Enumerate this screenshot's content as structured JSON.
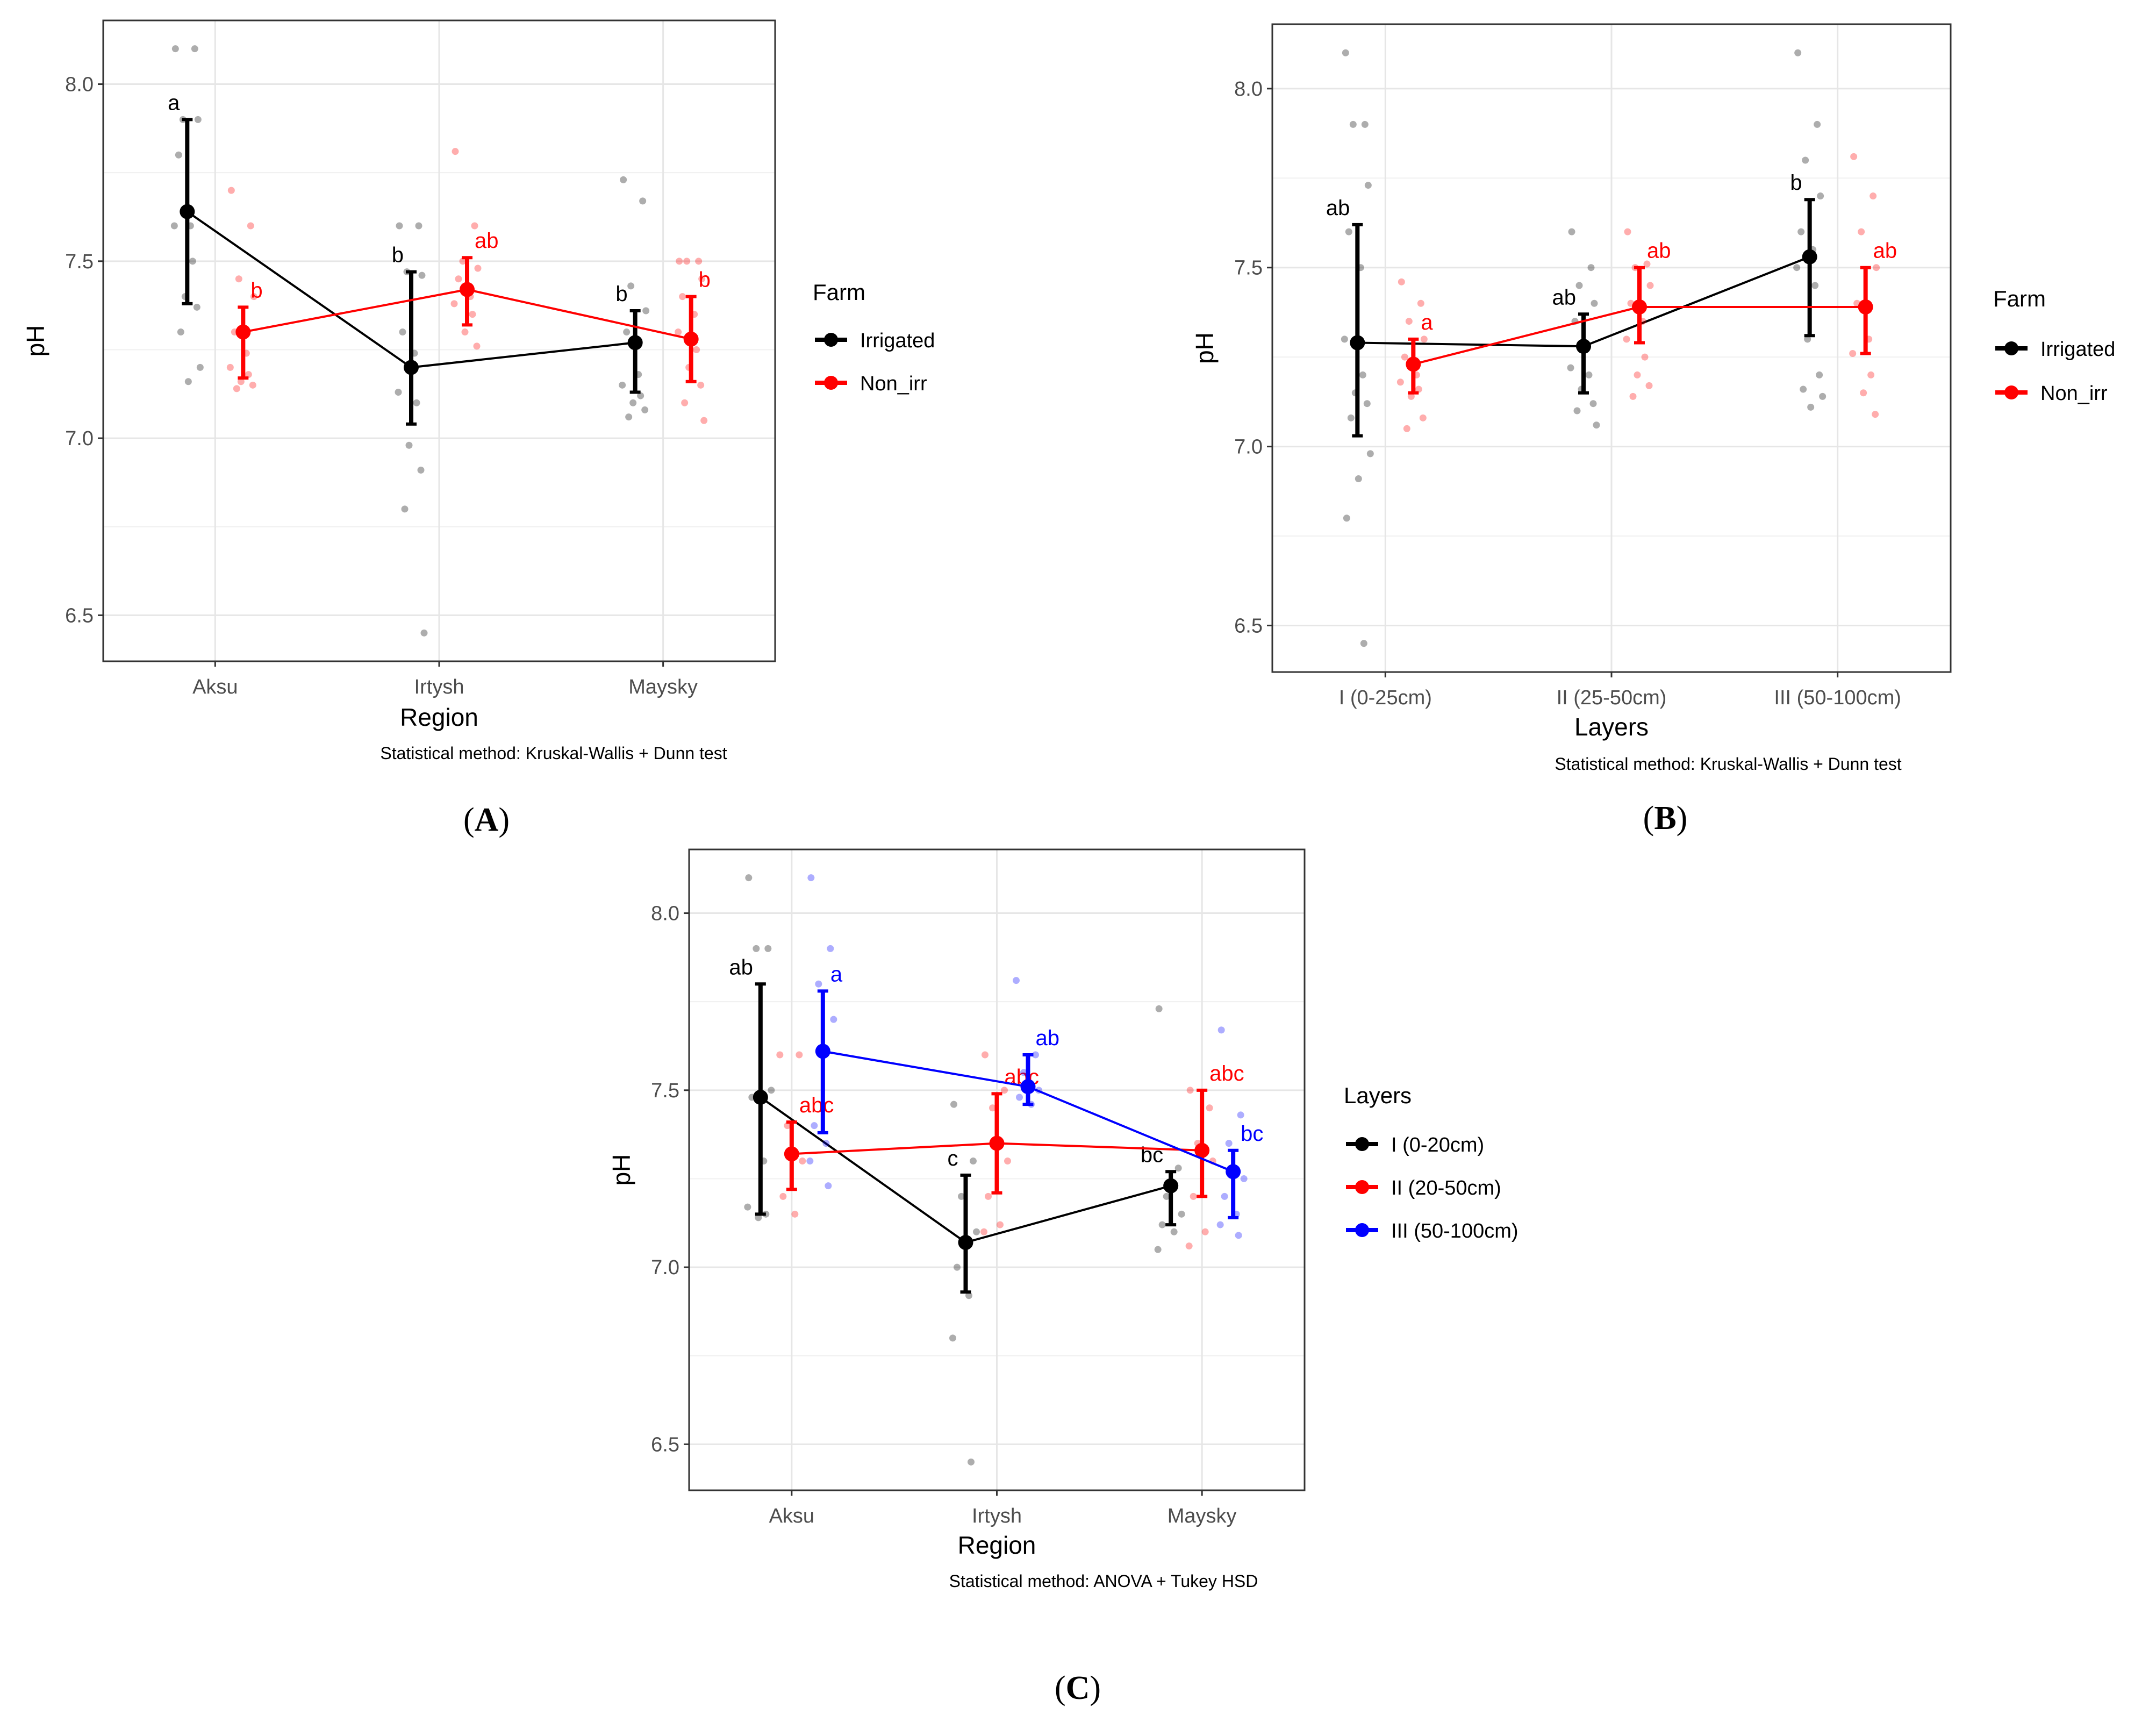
{
  "chart_data": [
    {
      "id": "A",
      "type": "line",
      "panel_label": "A",
      "xlabel": "Region",
      "ylabel": "pH",
      "caption": "Statistical method: Kruskal-Wallis + Dunn test",
      "categories": [
        "Aksu",
        "Irtysh",
        "Maysky"
      ],
      "ylim": [
        6.37,
        8.18
      ],
      "yticks": [
        6.5,
        7.0,
        7.5,
        8.0
      ],
      "ytick_labels": [
        "6.5",
        "7.0",
        "7.5",
        "8.0"
      ],
      "grid": true,
      "legend": {
        "title": "Farm",
        "placement": "right"
      },
      "series": [
        {
          "name": "Irrigated",
          "color": "#000000",
          "means": [
            7.64,
            7.2,
            7.27
          ],
          "lower": [
            7.38,
            7.04,
            7.13
          ],
          "upper": [
            7.9,
            7.47,
            7.36
          ],
          "letters": [
            "a",
            "b",
            "b"
          ],
          "points": [
            [
              8.1,
              8.1,
              7.9,
              7.9,
              7.8,
              7.6,
              7.6,
              7.5,
              7.4,
              7.37,
              7.3,
              7.2,
              7.16
            ],
            [
              7.6,
              7.6,
              7.47,
              7.46,
              7.3,
              7.24,
              7.13,
              7.1,
              6.98,
              6.91,
              6.8,
              6.45
            ],
            [
              7.73,
              7.67,
              7.43,
              7.36,
              7.3,
              7.18,
              7.15,
              7.12,
              7.1,
              7.08,
              7.06
            ]
          ]
        },
        {
          "name": "Non_irr",
          "color": "#ff0000",
          "means": [
            7.3,
            7.42,
            7.28
          ],
          "lower": [
            7.17,
            7.32,
            7.16
          ],
          "upper": [
            7.37,
            7.51,
            7.4
          ],
          "letters": [
            "b",
            "ab",
            "b"
          ],
          "points": [
            [
              7.7,
              7.6,
              7.45,
              7.4,
              7.3,
              7.24,
              7.2,
              7.18,
              7.16,
              7.15,
              7.14
            ],
            [
              7.81,
              7.6,
              7.5,
              7.48,
              7.45,
              7.4,
              7.38,
              7.35,
              7.3,
              7.26
            ],
            [
              7.5,
              7.5,
              7.5,
              7.45,
              7.4,
              7.35,
              7.3,
              7.25,
              7.2,
              7.15,
              7.1,
              7.05
            ]
          ]
        }
      ]
    },
    {
      "id": "B",
      "type": "line",
      "panel_label": "B",
      "xlabel": "Layers",
      "ylabel": "pH",
      "caption": "Statistical method: Kruskal-Wallis + Dunn test",
      "categories": [
        "I (0-25cm)",
        "II (25-50cm)",
        "III (50-100cm)"
      ],
      "ylim": [
        6.37,
        8.18
      ],
      "yticks": [
        6.5,
        7.0,
        7.5,
        8.0
      ],
      "ytick_labels": [
        "6.5",
        "7.0",
        "7.5",
        "8.0"
      ],
      "grid": true,
      "legend": {
        "title": "Farm",
        "placement": "right"
      },
      "series": [
        {
          "name": "Irrigated",
          "color": "#000000",
          "means": [
            7.29,
            7.28,
            7.53
          ],
          "lower": [
            7.03,
            7.15,
            7.31
          ],
          "upper": [
            7.62,
            7.37,
            7.69
          ],
          "letters": [
            "ab",
            "ab",
            "b"
          ],
          "points": [
            [
              8.1,
              7.9,
              7.9,
              7.73,
              7.6,
              7.5,
              7.3,
              7.2,
              7.15,
              7.12,
              7.08,
              6.98,
              6.91,
              6.8,
              6.45
            ],
            [
              7.6,
              7.5,
              7.45,
              7.4,
              7.35,
              7.28,
              7.22,
              7.2,
              7.16,
              7.12,
              7.1,
              7.06
            ],
            [
              8.1,
              7.9,
              7.8,
              7.7,
              7.6,
              7.55,
              7.5,
              7.45,
              7.3,
              7.2,
              7.16,
              7.14,
              7.11
            ]
          ]
        },
        {
          "name": "Non_irr",
          "color": "#ff0000",
          "means": [
            7.23,
            7.39,
            7.39
          ],
          "lower": [
            7.15,
            7.29,
            7.26
          ],
          "upper": [
            7.3,
            7.5,
            7.5
          ],
          "letters": [
            "a",
            "ab",
            "ab"
          ],
          "points": [
            [
              7.46,
              7.4,
              7.35,
              7.3,
              7.25,
              7.2,
              7.18,
              7.16,
              7.14,
              7.08,
              7.05
            ],
            [
              7.6,
              7.51,
              7.5,
              7.45,
              7.4,
              7.35,
              7.3,
              7.25,
              7.2,
              7.17,
              7.14
            ],
            [
              7.81,
              7.7,
              7.6,
              7.5,
              7.4,
              7.3,
              7.26,
              7.2,
              7.15,
              7.09
            ]
          ]
        }
      ]
    },
    {
      "id": "C",
      "type": "line",
      "panel_label": "C",
      "xlabel": "Region",
      "ylabel": "pH",
      "caption": "Statistical method: ANOVA + Tukey HSD",
      "categories": [
        "Aksu",
        "Irtysh",
        "Maysky"
      ],
      "ylim": [
        6.37,
        8.18
      ],
      "yticks": [
        6.5,
        7.0,
        7.5,
        8.0
      ],
      "ytick_labels": [
        "6.5",
        "7.0",
        "7.5",
        "8.0"
      ],
      "grid": true,
      "legend": {
        "title": "Layers",
        "placement": "right"
      },
      "series": [
        {
          "name": "I (0-20cm)",
          "color": "#000000",
          "means": [
            7.48,
            7.07,
            7.23
          ],
          "lower": [
            7.15,
            6.93,
            7.12
          ],
          "upper": [
            7.8,
            7.26,
            7.27
          ],
          "letters": [
            "ab",
            "c",
            "bc"
          ],
          "points": [
            [
              8.1,
              7.9,
              7.9,
              7.5,
              7.48,
              7.3,
              7.17,
              7.15,
              7.14
            ],
            [
              7.46,
              7.3,
              7.2,
              7.1,
              7.0,
              6.92,
              6.8,
              6.45
            ],
            [
              7.73,
              7.28,
              7.2,
              7.15,
              7.12,
              7.1,
              7.05
            ]
          ]
        },
        {
          "name": "II (20-50cm)",
          "color": "#ff0000",
          "means": [
            7.32,
            7.35,
            7.33
          ],
          "lower": [
            7.22,
            7.21,
            7.2
          ],
          "upper": [
            7.41,
            7.49,
            7.5
          ],
          "letters": [
            "abc",
            "abc",
            "abc"
          ],
          "points": [
            [
              7.6,
              7.6,
              7.4,
              7.3,
              7.2,
              7.15
            ],
            [
              7.6,
              7.5,
              7.45,
              7.3,
              7.2,
              7.12,
              7.1
            ],
            [
              7.5,
              7.45,
              7.35,
              7.3,
              7.2,
              7.1,
              7.06
            ]
          ]
        },
        {
          "name": "III (50-100cm)",
          "color": "#0000ff",
          "means": [
            7.61,
            7.51,
            7.27
          ],
          "lower": [
            7.38,
            7.46,
            7.14
          ],
          "upper": [
            7.78,
            7.6,
            7.33
          ],
          "letters": [
            "a",
            "ab",
            "bc"
          ],
          "points": [
            [
              8.1,
              7.9,
              7.8,
              7.7,
              7.4,
              7.35,
              7.3,
              7.23
            ],
            [
              7.81,
              7.6,
              7.55,
              7.5,
              7.48,
              7.46
            ],
            [
              7.67,
              7.43,
              7.35,
              7.25,
              7.2,
              7.15,
              7.12,
              7.09
            ]
          ]
        }
      ]
    }
  ]
}
